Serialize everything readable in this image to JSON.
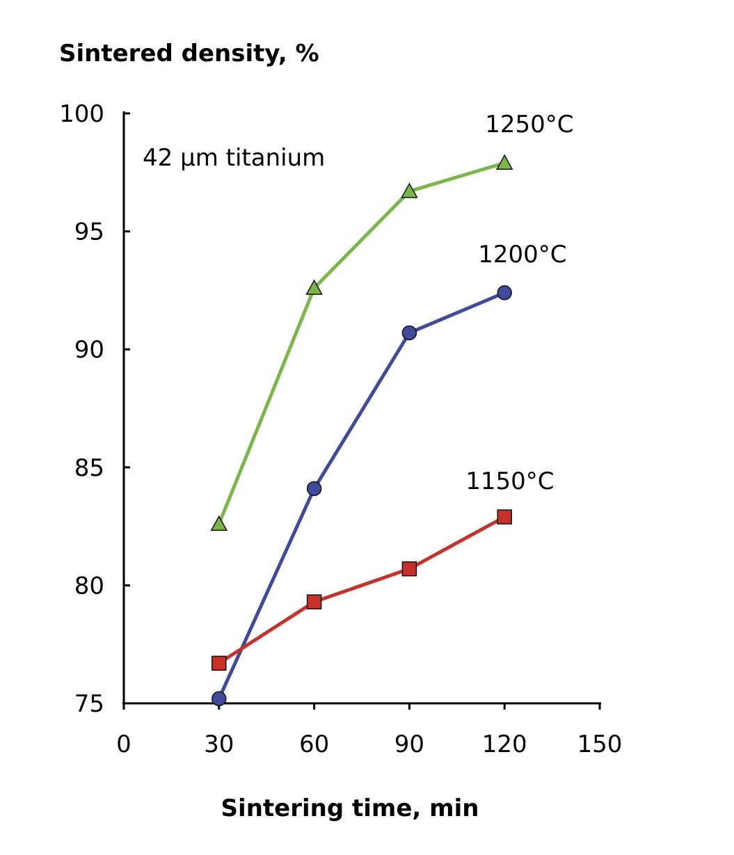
{
  "chart_data": {
    "type": "line",
    "ylabel": "Sintered density, %",
    "xlabel": "Sintering time, min",
    "xlim": [
      0,
      150
    ],
    "ylim": [
      75,
      100
    ],
    "xticks": [
      0,
      30,
      60,
      90,
      120,
      150
    ],
    "yticks": [
      75,
      80,
      85,
      90,
      95,
      100
    ],
    "xtick_labels": [
      "0",
      "30",
      "60",
      "90",
      "120",
      "150"
    ],
    "ytick_labels": [
      "75",
      "80",
      "85",
      "90",
      "95",
      "100"
    ],
    "annotation": "42 µm titanium",
    "grid": false,
    "series": [
      {
        "name": "1250°C",
        "color": "#7ab648",
        "marker": "triangle",
        "x": [
          30,
          60,
          90,
          120
        ],
        "y": [
          82.6,
          92.6,
          96.7,
          97.9
        ]
      },
      {
        "name": "1200°C",
        "color": "#3f4a9a",
        "marker": "circle",
        "x": [
          30,
          60,
          90,
          120
        ],
        "y": [
          75.2,
          84.1,
          90.7,
          92.4
        ]
      },
      {
        "name": "1150°C",
        "color": "#c8302a",
        "marker": "square",
        "x": [
          30,
          60,
          90,
          120
        ],
        "y": [
          76.7,
          79.3,
          80.7,
          82.9
        ]
      }
    ]
  }
}
